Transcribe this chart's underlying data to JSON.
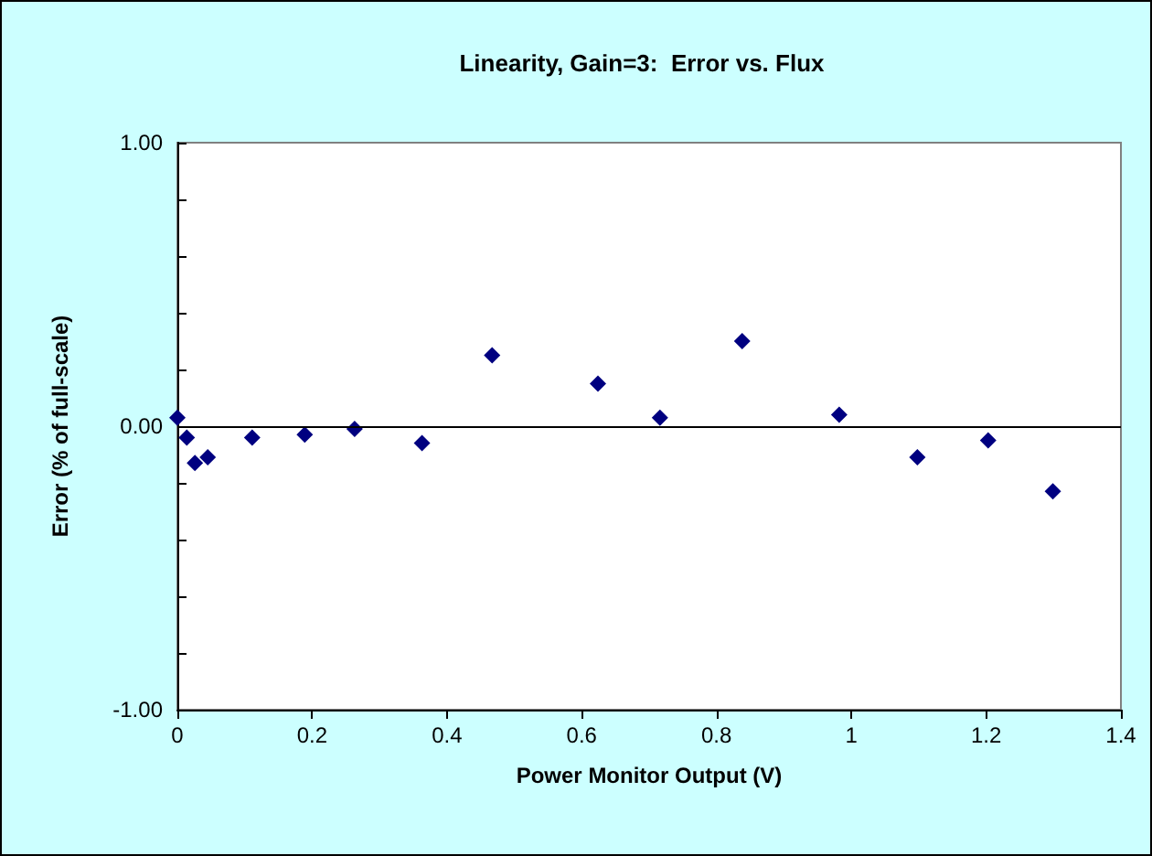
{
  "chart_data": {
    "type": "scatter",
    "title": "Linearity, Gain=3:  Error vs. Flux",
    "xlabel": "Power Monitor Output (V)",
    "ylabel": "Error (% of full-scale)",
    "x": [
      0,
      0.014,
      0.026,
      0.045,
      0.111,
      0.189,
      0.263,
      0.363,
      0.467,
      0.624,
      0.716,
      0.838,
      0.982,
      1.098,
      1.203,
      1.299
    ],
    "series": [
      {
        "color": "#000080",
        "values": [
          0.03,
          -0.04,
          -0.13,
          -0.11,
          -0.04,
          -0.03,
          -0.01,
          -0.06,
          0.25,
          0.15,
          0.03,
          0.3,
          0.04,
          -0.11,
          -0.05,
          -0.23
        ]
      }
    ],
    "xlim": [
      0,
      1.4
    ],
    "xticks": [
      0,
      0.2,
      0.4,
      0.6,
      0.8,
      1,
      1.2,
      1.4
    ],
    "ylim": [
      -1,
      1
    ],
    "yticks": [
      {
        "value": -1,
        "label": "-1.00"
      },
      {
        "value": -0.8,
        "label": null
      },
      {
        "value": -0.6,
        "label": null
      },
      {
        "value": -0.4,
        "label": null
      },
      {
        "value": -0.2,
        "label": null
      },
      {
        "value": 0,
        "label": "0.00"
      },
      {
        "value": 0.2,
        "label": null
      },
      {
        "value": 0.4,
        "label": null
      },
      {
        "value": 0.6,
        "label": null
      },
      {
        "value": 0.8,
        "label": null
      },
      {
        "value": 1,
        "label": "1.00"
      }
    ],
    "ref_lines": [
      {
        "axis": "y",
        "value": 0,
        "color": "#000000",
        "line_style": "solid"
      }
    ],
    "marker": "diamond",
    "grid": false
  }
}
